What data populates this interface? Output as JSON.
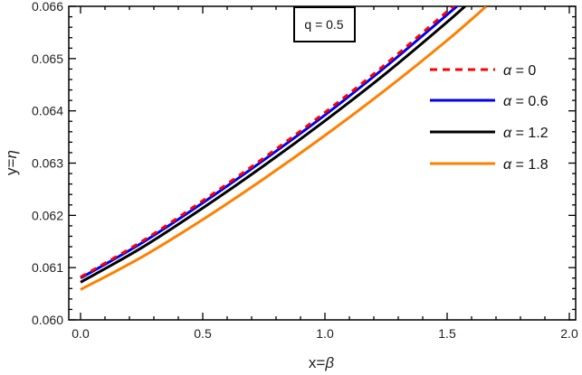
{
  "chart_data": {
    "type": "line",
    "title": "",
    "annotation": "q = 0.5",
    "xlabel": "x=β",
    "ylabel": "y=η",
    "xlim": [
      0.0,
      2.0
    ],
    "ylim": [
      0.06,
      0.066
    ],
    "xticks": [
      "0.0",
      "0.5",
      "1.0",
      "1.5",
      "2.0"
    ],
    "yticks": [
      "0.060",
      "0.061",
      "0.062",
      "0.063",
      "0.064",
      "0.065",
      "0.066"
    ],
    "grid": false,
    "legend_position": "upper right (inside)",
    "series": [
      {
        "name": "α = 0",
        "color": "#ff0000",
        "style": "dashed",
        "x": [
          0.0,
          0.25,
          0.5,
          0.75,
          1.0,
          1.25,
          1.5,
          1.58
        ],
        "y": [
          0.06082,
          0.0615,
          0.06228,
          0.0631,
          0.06397,
          0.0649,
          0.0659,
          0.0662
        ]
      },
      {
        "name": "α = 0.6",
        "color": "#0000ee",
        "style": "solid",
        "x": [
          0.0,
          0.25,
          0.5,
          0.75,
          1.0,
          1.25,
          1.5,
          1.6
        ],
        "y": [
          0.0608,
          0.06147,
          0.06224,
          0.06306,
          0.06392,
          0.06485,
          0.06584,
          0.06625
        ]
      },
      {
        "name": "α = 1.2",
        "color": "#000000",
        "style": "solid",
        "x": [
          0.0,
          0.25,
          0.5,
          0.75,
          1.0,
          1.25,
          1.5,
          1.62
        ],
        "y": [
          0.06072,
          0.06138,
          0.06214,
          0.06295,
          0.06381,
          0.06472,
          0.0657,
          0.0662
        ]
      },
      {
        "name": "α = 1.8",
        "color": "#ff8000",
        "style": "solid",
        "x": [
          0.0,
          0.25,
          0.5,
          0.75,
          1.0,
          1.25,
          1.5,
          1.66
        ],
        "y": [
          0.06058,
          0.0612,
          0.06192,
          0.0627,
          0.06353,
          0.06441,
          0.06535,
          0.066
        ]
      }
    ]
  }
}
